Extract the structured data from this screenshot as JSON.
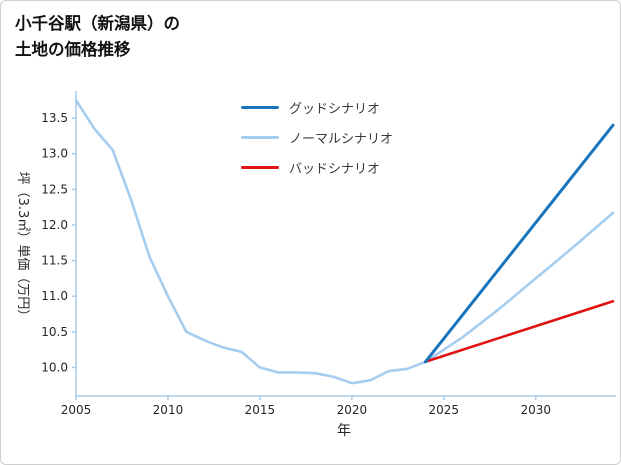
{
  "title": {
    "line1": "小千谷駅（新潟県）の",
    "line2": "土地の価格推移"
  },
  "chart_data": {
    "type": "line",
    "title": "小千谷駅（新潟県）の土地の価格推移",
    "xlabel": "年",
    "ylabel": "坪（3.3㎡）単価（万円）",
    "x_ticks": [
      "2005",
      "2010",
      "2015",
      "2020",
      "2025",
      "2030"
    ],
    "x_tick_values": [
      2005,
      2010,
      2015,
      2020,
      2025,
      2030
    ],
    "y_ticks": [
      "10.0",
      "10.5",
      "11.0",
      "11.5",
      "12.0",
      "12.5",
      "13.0",
      "13.5"
    ],
    "y_tick_values": [
      10.0,
      10.5,
      11.0,
      11.5,
      12.0,
      12.5,
      13.0,
      13.5
    ],
    "x_range": [
      2005,
      2034.2
    ],
    "y_range": [
      9.6,
      13.88
    ],
    "grid": false,
    "legend_position": "upper-center",
    "colors": {
      "good": "#1874bc",
      "normal": "#a5cdf0",
      "bad": "#e01212",
      "history": "#a5cdf0",
      "spine": "#a9cbe8",
      "tick_label": "#262626"
    },
    "series": [
      {
        "id": "history",
        "color": "#a5cdf0",
        "width": 2.6,
        "x": [
          2005,
          2006,
          2007,
          2008,
          2009,
          2010,
          2011,
          2012,
          2013,
          2014,
          2015,
          2016,
          2017,
          2018,
          2019,
          2020,
          2021,
          2022,
          2023,
          2024
        ],
        "y": [
          13.75,
          13.35,
          13.05,
          12.35,
          11.55,
          11.0,
          10.5,
          10.38,
          10.28,
          10.22,
          10.0,
          9.93,
          9.93,
          9.92,
          9.87,
          9.78,
          9.82,
          9.95,
          9.98,
          10.08
        ]
      },
      {
        "id": "good",
        "legend": "グッドシナリオ",
        "color": "#1874bc",
        "width": 3,
        "x": [
          2024,
          2034.2
        ],
        "y": [
          10.08,
          13.4
        ]
      },
      {
        "id": "normal",
        "legend": "ノーマルシナリオ",
        "color": "#a5cdf0",
        "width": 2.6,
        "x": [
          2024,
          2026,
          2028,
          2030,
          2032,
          2034.2
        ],
        "y": [
          10.08,
          10.42,
          10.82,
          11.25,
          11.68,
          12.17
        ]
      },
      {
        "id": "bad",
        "legend": "バッドシナリオ",
        "color": "#e01212",
        "width": 2.6,
        "x": [
          2024,
          2034.2
        ],
        "y": [
          10.08,
          10.93
        ]
      }
    ]
  }
}
